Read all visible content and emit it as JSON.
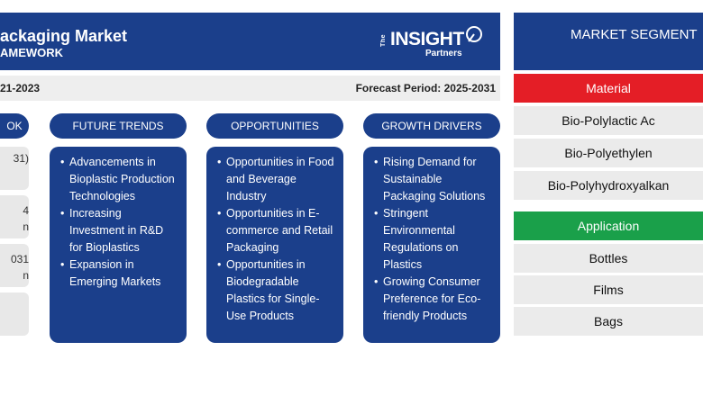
{
  "header": {
    "title": "ackaging Market",
    "subtitle": "AMEWORK",
    "logo": {
      "the": "The",
      "insight": "INSIGHT",
      "partners": "Partners"
    }
  },
  "periods": {
    "historic": "21-2023",
    "forecast": "Forecast Period: 2025-2031"
  },
  "columns": [
    {
      "title": "OK"
    },
    {
      "title": "FUTURE TRENDS",
      "items": [
        "Advancements in Bioplastic Production Technologies",
        "Increasing Investment in R&D for Bioplastics",
        "Expansion in Emerging Markets"
      ]
    },
    {
      "title": "OPPORTUNITIES",
      "items": [
        "Opportunities in Food and Beverage Industry",
        "Opportunities in E-commerce and Retail Packaging",
        "Opportunities in Biodegradable Plastics for Single-Use Products"
      ]
    },
    {
      "title": "GROWTH DRIVERS",
      "items": [
        "Rising Demand for Sustainable Packaging Solutions",
        "Stringent Environmental Regulations on Plastics",
        "Growing Consumer Preference for Eco-friendly Products"
      ]
    }
  ],
  "outlook": {
    "boxes": [
      [
        "31)",
        ""
      ],
      [
        "4",
        "n"
      ],
      [
        "031",
        "n"
      ],
      [
        ""
      ]
    ]
  },
  "segmentation": {
    "title": "MARKET SEGMENT",
    "groups": [
      {
        "name": "Material",
        "color": "#e41e26",
        "items": [
          "Bio-Polylactic Ac",
          "Bio-Polyethylen",
          "Bio-Polyhydroxyalkan"
        ]
      },
      {
        "name": "Application",
        "color": "#1aa04a",
        "items": [
          "Bottles",
          "Films",
          "Bags"
        ]
      }
    ]
  },
  "colors": {
    "navy": "#1b3f8b",
    "band_gray": "#eeeeee",
    "material_red": "#e41e26",
    "application_green": "#1aa04a"
  }
}
